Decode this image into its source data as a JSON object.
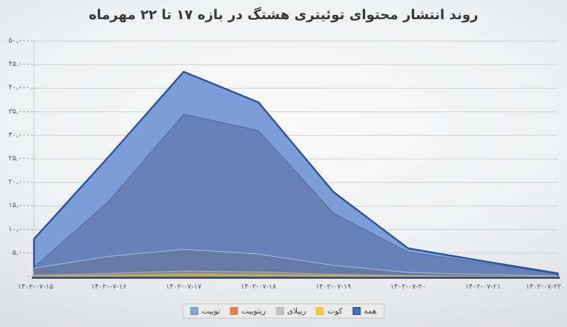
{
  "chart_data": {
    "type": "area",
    "title": "روند انتشار محتوای توئیتری هشتگ در بازه ۱۷ تا ۲۲ مهرماه",
    "direction": "rtl",
    "grid": true,
    "legend_position": "bottom-center",
    "x_labels": [
      "۱۴۰۲-۰۷-۱۵",
      "۱۴۰۲-۰۷-۱۶",
      "۱۴۰۲-۰۷-۱۷",
      "۱۴۰۲-۰۷-۱۸",
      "۱۴۰۲-۰۷-۱۹",
      "۱۴۰۲-۰۷-۲۰",
      "۱۴۰۲-۰۷-۲۱",
      "۱۴۰۲-۰۷-۲۲"
    ],
    "y_axis": {
      "max": 50000,
      "min": 0,
      "step": 5000,
      "labels_top_to_bottom": [
        "۵۰,۰۰۰",
        "۴۵,۰۰۰",
        "۴۰,۰۰۰",
        "۳۵,۰۰۰",
        "۳۰,۰۰۰",
        "۲۵,۰۰۰",
        "۲۰,۰۰۰",
        "۱۵,۰۰۰",
        "۱۰,۰۰۰",
        "۵,۰۰۰",
        "۰"
      ]
    },
    "series": [
      {
        "key": "all",
        "name": "همه",
        "fill": "#7d9dd8",
        "stroke": "#2f5496",
        "stroke_width": 2.5,
        "values": [
          8000,
          25500,
          43500,
          37000,
          18000,
          6000,
          3300,
          700
        ]
      },
      {
        "key": "tweet",
        "name": "توییت",
        "fill": "rgba(52,68,108,0.30)",
        "stroke": "rgba(44,60,96,0.45)",
        "stroke_width": 1,
        "values": [
          2000,
          16000,
          34500,
          31000,
          13500,
          5200,
          2900,
          600
        ]
      },
      {
        "key": "retweet",
        "name": "ریتوییت",
        "fill": "rgba(98,104,126,0.28)",
        "stroke": "rgba(190,205,235,0.85)",
        "stroke_width": 1,
        "values": [
          1800,
          4300,
          5800,
          4800,
          2400,
          900,
          450,
          120
        ]
      },
      {
        "key": "reply",
        "name": "ریپلای",
        "fill": "rgba(165,165,165,0.45)",
        "stroke": "rgba(200,200,200,0.7)",
        "stroke_width": 1,
        "values": [
          300,
          700,
          1200,
          1000,
          500,
          200,
          100,
          40
        ]
      },
      {
        "key": "quote",
        "name": "کوت",
        "fill": "rgba(255,192,0,0.45)",
        "stroke": "rgba(255,205,60,0.7)",
        "stroke_width": 1,
        "values": [
          100,
          250,
          500,
          400,
          200,
          80,
          40,
          15
        ]
      }
    ],
    "legend": [
      {
        "key": "tweet",
        "label": "توییت",
        "color": "#7ea6d9",
        "border": "#6d95c8"
      },
      {
        "key": "retweet",
        "label": "ریتوییت",
        "color": "#e8834e",
        "border": "#d9743f"
      },
      {
        "key": "reply",
        "label": "ریپلای",
        "color": "#c3c3c3",
        "border": "#b2b2b2"
      },
      {
        "key": "quote",
        "label": "کوت",
        "color": "#ffc93e",
        "border": "#efb92e"
      },
      {
        "key": "all",
        "label": "همه",
        "color": "#4472c4",
        "border": "#1f3864"
      }
    ],
    "colors": {
      "axis_line": "#3d4f6e",
      "grid_line": "#cfcfcf",
      "y_axis_line": "#c9c9c9",
      "tick": "#aeaeae",
      "title_text": "#383838",
      "axis_text": "#5a5a5a"
    }
  }
}
